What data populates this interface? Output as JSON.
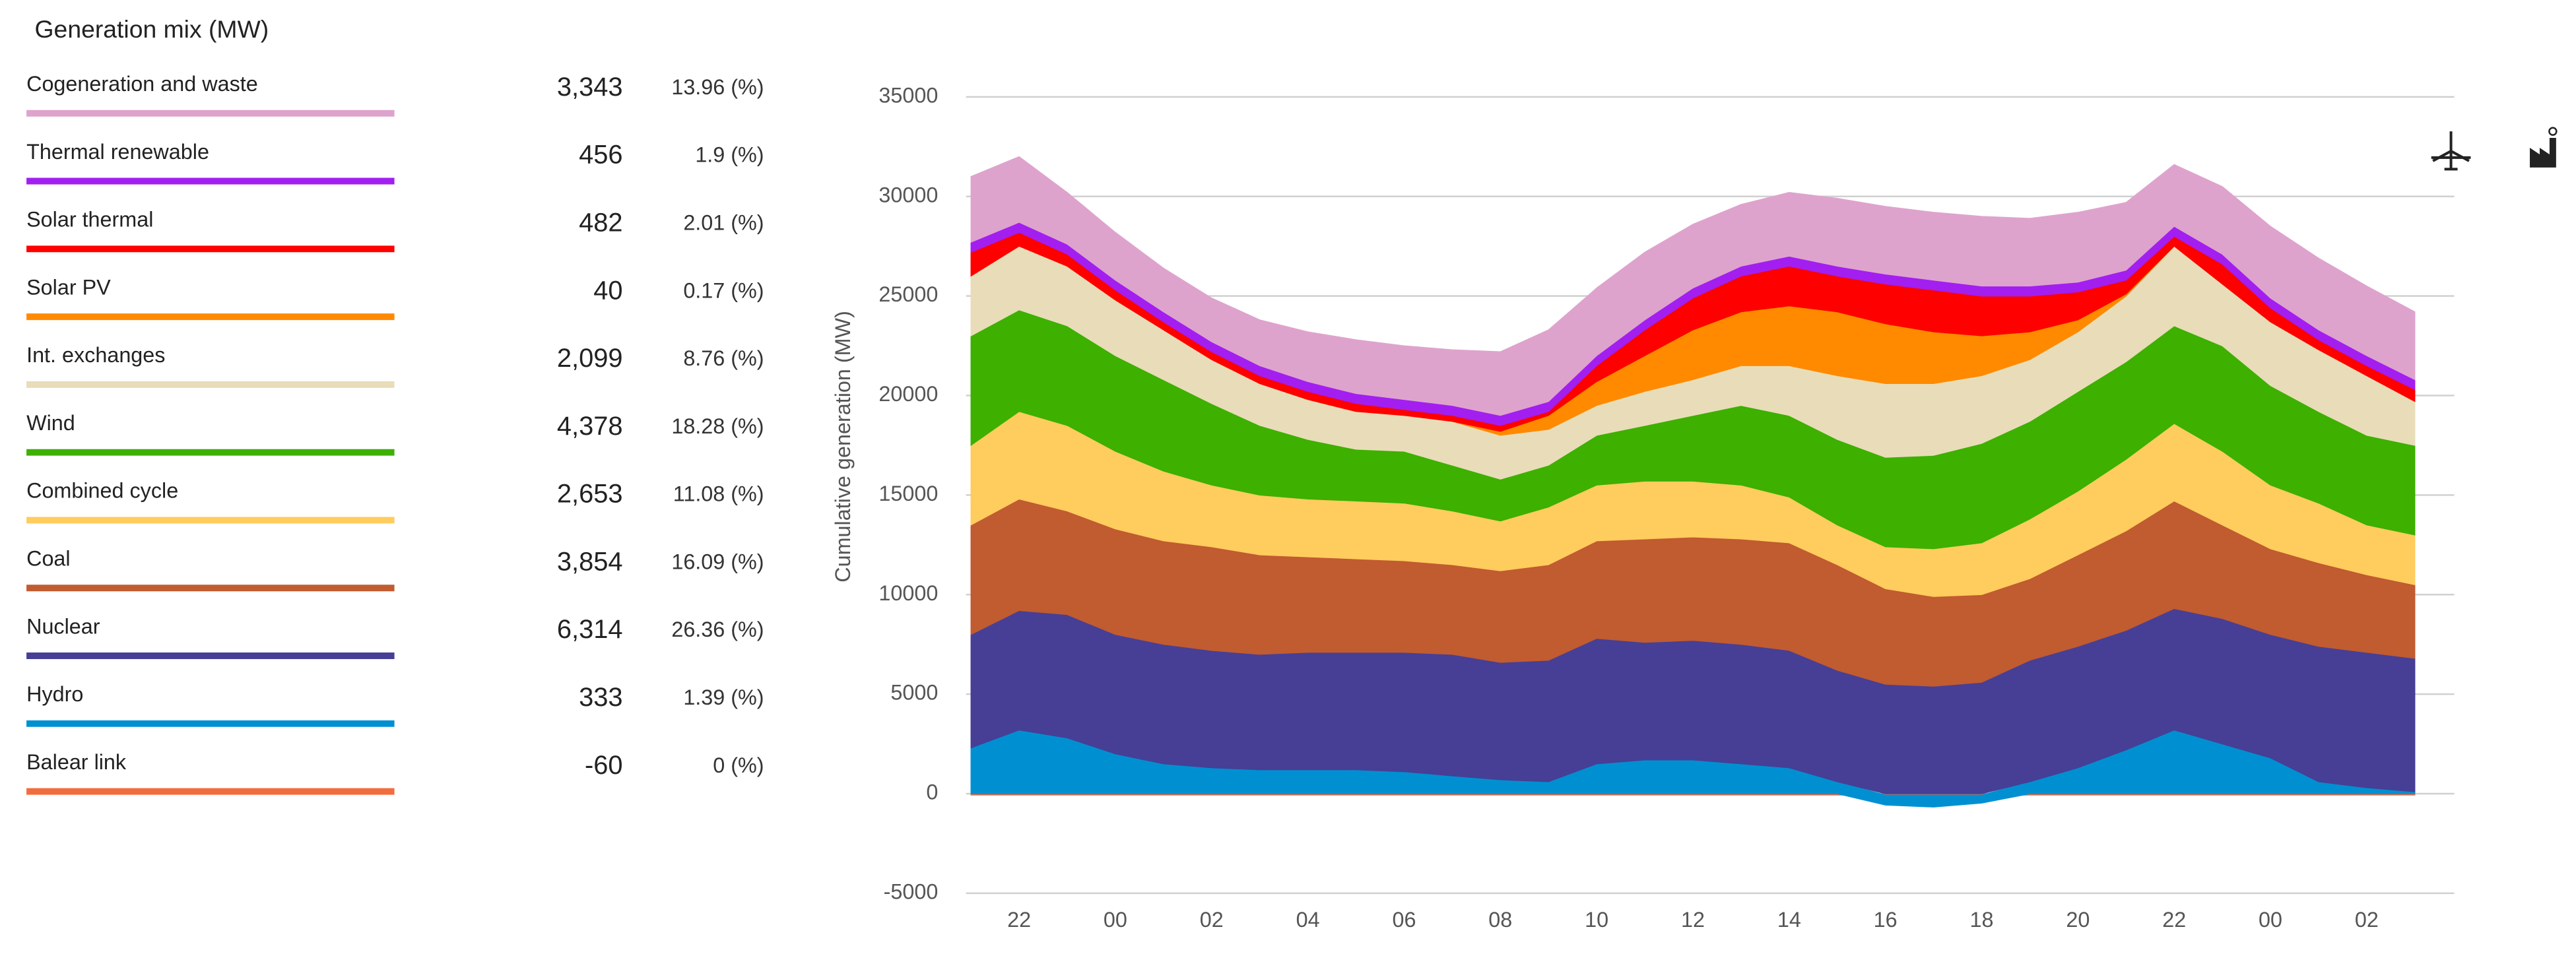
{
  "chart_data": {
    "type": "stacked_area",
    "title": "Generation mix (MW)",
    "y_label": "Cumulative generation (MW)",
    "categories": [
      null,
      "22",
      null,
      "00",
      null,
      "02",
      null,
      "04",
      null,
      "06",
      null,
      "08",
      null,
      "10",
      null,
      "12",
      null,
      "14",
      null,
      "16",
      null,
      "18",
      null,
      "20",
      null,
      "22",
      null,
      "00",
      null,
      "02",
      null
    ],
    "ylim": [
      -5000,
      35000
    ],
    "yticks": [
      -5000,
      0,
      5000,
      10000,
      15000,
      20000,
      25000,
      30000,
      35000
    ],
    "grid": true,
    "series": [
      {
        "name": "Cogeneration and waste",
        "color": "#dea3cd",
        "current": 3343,
        "current_label": "3,343",
        "share": 13.96,
        "share_label": "13.96 (%)",
        "values": [
          3300,
          3300,
          2600,
          2400,
          2200,
          2200,
          2300,
          2500,
          2700,
          2700,
          2800,
          3200,
          3600,
          3400,
          3400,
          3200,
          3100,
          3200,
          3400,
          3400,
          3400,
          3500,
          3400,
          3500,
          3400,
          3100,
          3400,
          3600,
          3600,
          3500,
          3400
        ]
      },
      {
        "name": "Thermal renewable",
        "color": "#a21ff0",
        "current": 456,
        "share": 1.9,
        "share_label": "1.9 (%)",
        "values": [
          500,
          500,
          500,
          500,
          500,
          500,
          500,
          500,
          500,
          500,
          500,
          500,
          500,
          500,
          500,
          500,
          500,
          500,
          500,
          500,
          500,
          500,
          500,
          500,
          500,
          500,
          500,
          500,
          500,
          500,
          500
        ]
      },
      {
        "name": "Solar thermal",
        "color": "#ff0000",
        "current": 482,
        "share": 2.01,
        "share_label": "2.01 (%)",
        "values": [
          1200,
          700,
          600,
          500,
          400,
          400,
          400,
          400,
          400,
          300,
          300,
          300,
          200,
          800,
          1300,
          1600,
          1800,
          2000,
          1800,
          2000,
          2100,
          2000,
          1800,
          1400,
          700,
          500,
          1000,
          700,
          500,
          500,
          600
        ]
      },
      {
        "name": "Solar PV",
        "color": "#ff8a00",
        "current": 40,
        "share": 0.17,
        "share_label": "0.17 (%)",
        "values": [
          0,
          0,
          0,
          0,
          0,
          0,
          0,
          0,
          0,
          0,
          0,
          200,
          700,
          1200,
          1800,
          2500,
          2700,
          3000,
          3200,
          3000,
          2600,
          2000,
          1400,
          600,
          100,
          0,
          0,
          0,
          0,
          0,
          0
        ]
      },
      {
        "name": "Int. exchanges",
        "color": "#e8ddb8",
        "current": 2099,
        "current_label": "2,099",
        "share": 8.76,
        "share_label": "8.76 (%)",
        "values": [
          3000,
          3200,
          3000,
          2800,
          2500,
          2200,
          2100,
          2000,
          1900,
          1800,
          2200,
          2200,
          1800,
          1500,
          1700,
          1800,
          2000,
          2500,
          3200,
          3700,
          3600,
          3400,
          3100,
          3000,
          3300,
          4000,
          3100,
          3200,
          3100,
          3000,
          2200
        ]
      },
      {
        "name": "Wind",
        "color": "#3db000",
        "current": 4378,
        "current_label": "4,378",
        "share": 18.28,
        "share_label": "18.28 (%)",
        "values": [
          5500,
          5100,
          5000,
          4800,
          4600,
          4100,
          3500,
          3000,
          2600,
          2600,
          2300,
          2100,
          2100,
          2500,
          2800,
          3300,
          4000,
          4100,
          4300,
          4500,
          4700,
          5000,
          4900,
          5000,
          4900,
          4900,
          5300,
          5000,
          4600,
          4500,
          4500
        ]
      },
      {
        "name": "Combined cycle",
        "color": "#ffcc5e",
        "current": 2653,
        "current_label": "2,653",
        "share": 11.08,
        "share_label": "11.08 (%)",
        "values": [
          4000,
          4400,
          4300,
          3900,
          3500,
          3100,
          3000,
          2900,
          2900,
          2900,
          2700,
          2500,
          2900,
          2800,
          2900,
          2800,
          2700,
          2300,
          2000,
          2100,
          2400,
          2600,
          3000,
          3200,
          3600,
          3900,
          3700,
          3200,
          3000,
          2500,
          2500
        ]
      },
      {
        "name": "Coal",
        "color": "#c15b30",
        "current": 3854,
        "current_label": "3,854",
        "share": 16.09,
        "share_label": "16.09 (%)",
        "values": [
          5500,
          5600,
          5200,
          5300,
          5200,
          5200,
          5000,
          4800,
          4700,
          4600,
          4500,
          4600,
          4800,
          4900,
          5200,
          5200,
          5300,
          5400,
          5300,
          4800,
          4500,
          4400,
          4100,
          4600,
          5000,
          5400,
          4700,
          4300,
          4200,
          3900,
          3700
        ]
      },
      {
        "name": "Nuclear",
        "color": "#463f95",
        "current": 6314,
        "current_label": "6,314",
        "share": 26.36,
        "share_label": "26.36 (%)",
        "values": [
          5700,
          6000,
          6200,
          6000,
          6000,
          5900,
          5800,
          5900,
          5900,
          6000,
          6100,
          5900,
          6100,
          6300,
          5900,
          6000,
          6000,
          5900,
          5600,
          5500,
          5400,
          5600,
          6100,
          6100,
          6000,
          6100,
          6300,
          6200,
          6800,
          6800,
          6700
        ]
      },
      {
        "name": "Hydro",
        "color": "#0090d2",
        "current": 333,
        "share": 1.39,
        "share_label": "1.39 (%)",
        "values": [
          2300,
          3200,
          2800,
          2000,
          1500,
          1300,
          1200,
          1200,
          1200,
          1100,
          900,
          700,
          600,
          1500,
          1700,
          1700,
          1500,
          1300,
          600,
          -500,
          -600,
          -400,
          600,
          1300,
          2200,
          3200,
          2500,
          1800,
          600,
          300,
          100
        ]
      },
      {
        "name": "Balear link",
        "color": "#f26d3d",
        "current": -60,
        "share": 0,
        "share_label": "0 (%)",
        "values": [
          -70,
          -70,
          -70,
          -70,
          -70,
          -70,
          -70,
          -70,
          -70,
          -70,
          -70,
          -70,
          -70,
          -70,
          -70,
          -70,
          -70,
          -70,
          -70,
          -70,
          -70,
          -70,
          -70,
          -70,
          -70,
          -70,
          -70,
          -70,
          -70,
          -70,
          -70
        ]
      }
    ]
  }
}
